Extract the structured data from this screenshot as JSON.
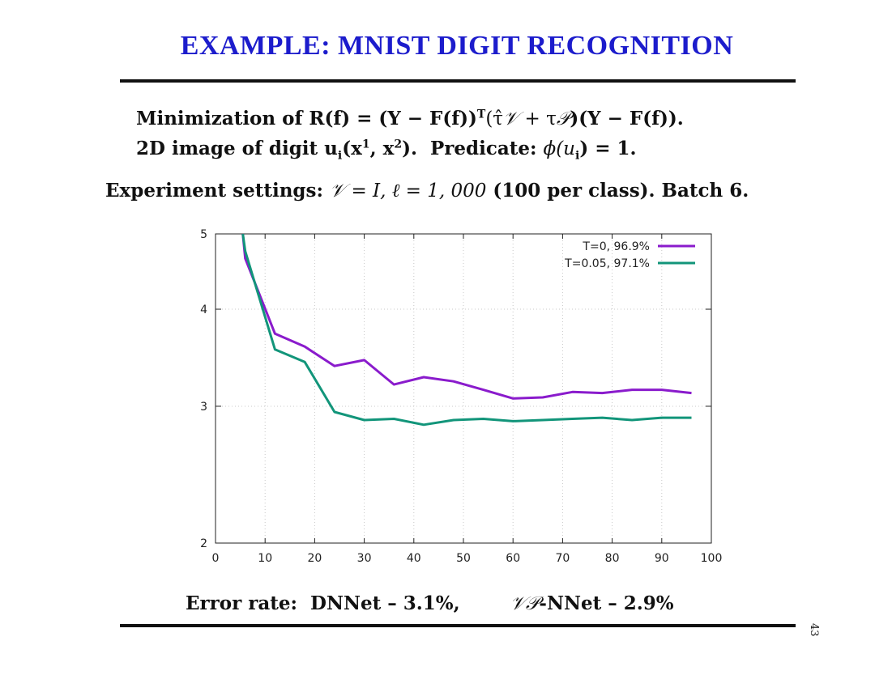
{
  "slide": {
    "title": "EXAMPLE: MNIST DIGIT RECOGNITION",
    "line1": {
      "prefix": "Minimization of ",
      "formula_a": "R(f) = (Y − F(f))",
      "sup_T": "T",
      "formula_b": "(τ̂",
      "calV": "𝒱",
      "formula_c": " + τ",
      "calP": "𝒫",
      "formula_d": ")(Y − F(f))."
    },
    "line2": {
      "prefix": "2D image of digit ",
      "u": "u",
      "sub_i": "i",
      "x_open": "(x",
      "sup1": "1",
      "x_mid": ", x",
      "sup2": "2",
      "x_close": ").",
      "pred_label": "  Predicate: ",
      "phi": "ϕ(u",
      "phi_sub": "i",
      "phi_end": ") = 1."
    },
    "line3": {
      "prefix": "Experiment settings: ",
      "calV": "𝒱",
      "eq1": " = I, ℓ = 1, 000",
      "rest": " (100 per class).  Batch 6."
    },
    "error_rate": {
      "label": "Error rate:  DNNet – 3.1%,",
      "vp": "𝒱𝒫",
      "rest": "-NNet – 2.9%"
    },
    "page_number": "43"
  },
  "chart_data": {
    "type": "line",
    "xlim": [
      0,
      100
    ],
    "ylim": [
      2,
      5
    ],
    "y_scale": "log",
    "x_ticks": [
      "0",
      "10",
      "20",
      "30",
      "40",
      "50",
      "60",
      "70",
      "80",
      "90",
      "100"
    ],
    "y_ticks": [
      "2",
      "3",
      "4",
      "5"
    ],
    "grid": true,
    "legend_position": "top-right",
    "series": [
      {
        "name": "T=0, 96.9%",
        "color": "#8a1bcc",
        "x": [
          5.5,
          6,
          12,
          18,
          24,
          30,
          36,
          42,
          48,
          54,
          60,
          66,
          72,
          78,
          84,
          90,
          96
        ],
        "y": [
          5.0,
          4.65,
          3.72,
          3.58,
          3.38,
          3.44,
          3.2,
          3.27,
          3.23,
          3.15,
          3.07,
          3.08,
          3.13,
          3.12,
          3.15,
          3.15,
          3.12
        ]
      },
      {
        "name": "T=0.05, 97.1%",
        "color": "#12957a",
        "x": [
          5.5,
          6,
          12,
          18,
          24,
          30,
          36,
          42,
          48,
          54,
          60,
          66,
          72,
          78,
          84,
          90,
          96
        ],
        "y": [
          5.0,
          4.75,
          3.55,
          3.42,
          2.95,
          2.88,
          2.89,
          2.84,
          2.88,
          2.89,
          2.87,
          2.88,
          2.89,
          2.9,
          2.88,
          2.9,
          2.9
        ]
      }
    ]
  }
}
